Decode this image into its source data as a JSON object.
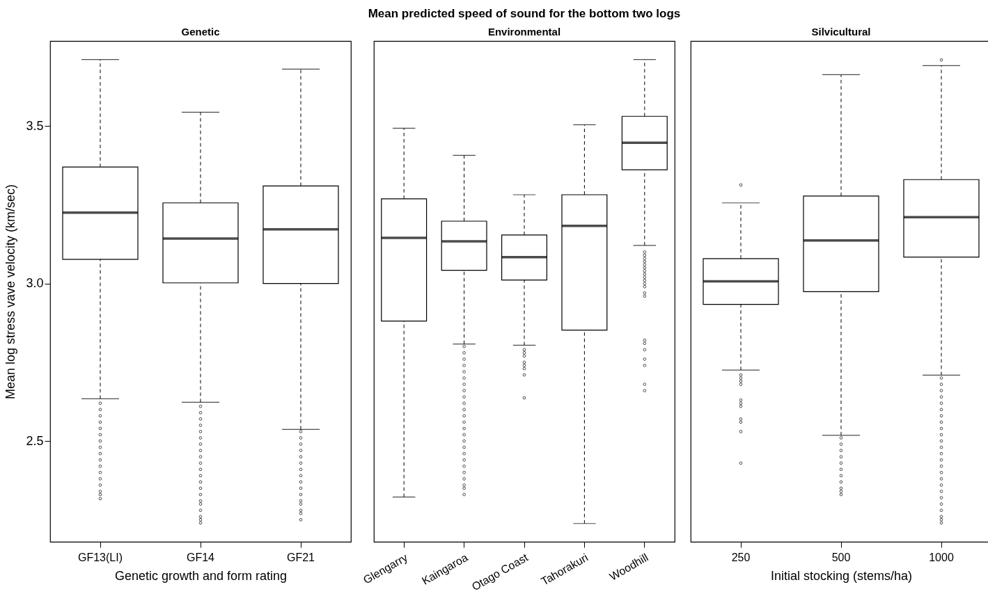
{
  "chart_data": [
    {
      "type": "box",
      "subtitle": "Genetic",
      "xlabel": "Genetic growth and form rating",
      "ylabel": "Mean log stress vave velocity (km/sec)",
      "categories": [
        "GF13(LI)",
        "GF14",
        "GF21"
      ],
      "boxes": [
        {
          "low": 2.634,
          "q1": 3.077,
          "median": 3.225,
          "q3": 3.37,
          "high": 3.711,
          "outliers": [
            2.62,
            2.6,
            2.58,
            2.56,
            2.54,
            2.52,
            2.5,
            2.48,
            2.46,
            2.44,
            2.42,
            2.4,
            2.38,
            2.36,
            2.34,
            2.33,
            2.317
          ]
        },
        {
          "low": 2.623,
          "q1": 3.002,
          "median": 3.143,
          "q3": 3.256,
          "high": 3.544,
          "outliers": [
            2.61,
            2.59,
            2.57,
            2.55,
            2.53,
            2.51,
            2.49,
            2.47,
            2.45,
            2.43,
            2.41,
            2.39,
            2.37,
            2.35,
            2.33,
            2.31,
            2.3,
            2.28,
            2.26,
            2.25,
            2.24
          ]
        },
        {
          "low": 2.537,
          "q1": 3.0,
          "median": 3.172,
          "q3": 3.31,
          "high": 3.681,
          "outliers": [
            2.53,
            2.51,
            2.49,
            2.47,
            2.45,
            2.43,
            2.41,
            2.39,
            2.37,
            2.35,
            2.33,
            2.31,
            2.3,
            2.28,
            2.27,
            2.25
          ]
        }
      ],
      "ylim": [
        2.18,
        3.77
      ],
      "yticks": [
        2.5,
        {
          "value": 3,
          "label": "3.0"
        },
        3.5
      ]
    },
    {
      "type": "box",
      "title": "Mean predicted speed of sound for the bottom two logs",
      "subtitle": "Environmental",
      "categories": [
        "Glengarry",
        "Kaingaroa",
        "Otago Coast",
        "Tahorakuri",
        "Woodhill"
      ],
      "boxes": [
        {
          "low": 2.322,
          "q1": 2.881,
          "median": 3.145,
          "q3": 3.269,
          "high": 3.493
        },
        {
          "low": 2.808,
          "q1": 3.042,
          "median": 3.134,
          "q3": 3.198,
          "high": 3.407,
          "outliers": [
            2.8,
            2.78,
            2.76,
            2.74,
            2.72,
            2.7,
            2.68,
            2.66,
            2.64,
            2.62,
            2.6,
            2.58,
            2.56,
            2.54,
            2.52,
            2.5,
            2.48,
            2.46,
            2.44,
            2.42,
            2.4,
            2.38,
            2.36,
            2.35,
            2.33
          ]
        },
        {
          "low": 2.804,
          "q1": 3.011,
          "median": 3.084,
          "q3": 3.154,
          "high": 3.282,
          "outliers": [
            2.79,
            2.78,
            2.77,
            2.75,
            2.74,
            2.73,
            2.71,
            2.637
          ]
        },
        {
          "low": 2.238,
          "q1": 2.852,
          "median": 3.183,
          "q3": 3.282,
          "high": 3.504
        },
        {
          "low": 3.121,
          "q1": 3.361,
          "median": 3.447,
          "q3": 3.531,
          "high": 3.711,
          "outliers": [
            3.1,
            3.09,
            3.08,
            3.07,
            3.06,
            3.05,
            3.04,
            3.03,
            3.02,
            3.01,
            3.0,
            2.99,
            2.97,
            2.96,
            2.82,
            2.81,
            2.79,
            2.76,
            2.74,
            2.68,
            2.66
          ]
        }
      ],
      "ylim": [
        2.18,
        3.77
      ],
      "tick_labels": "x"
    },
    {
      "type": "box",
      "subtitle": "Silvicultural",
      "xlabel": "Initial stocking (stems/ha)",
      "categories": [
        "250",
        "500",
        "1000"
      ],
      "boxes": [
        {
          "low": 2.725,
          "q1": 2.934,
          "median": 3.007,
          "q3": 3.079,
          "high": 3.256,
          "outliers": [
            3.313,
            2.71,
            2.7,
            2.69,
            2.68,
            2.63,
            2.62,
            2.61,
            2.57,
            2.56,
            2.53,
            2.43
          ]
        },
        {
          "low": 2.518,
          "q1": 2.974,
          "median": 3.137,
          "q3": 3.278,
          "high": 3.663,
          "outliers": [
            2.51,
            2.49,
            2.47,
            2.45,
            2.43,
            2.41,
            2.39,
            2.37,
            2.35,
            2.34,
            2.33
          ]
        },
        {
          "low": 2.709,
          "q1": 3.084,
          "median": 3.211,
          "q3": 3.33,
          "high": 3.692,
          "outliers": [
            3.71,
            2.7,
            2.68,
            2.66,
            2.64,
            2.62,
            2.6,
            2.58,
            2.56,
            2.54,
            2.52,
            2.5,
            2.48,
            2.46,
            2.44,
            2.42,
            2.4,
            2.38,
            2.36,
            2.34,
            2.32,
            2.3,
            2.28,
            2.26,
            2.25,
            2.24
          ]
        }
      ],
      "ylim": [
        2.18,
        3.77
      ],
      "tick_labels": "x"
    }
  ]
}
